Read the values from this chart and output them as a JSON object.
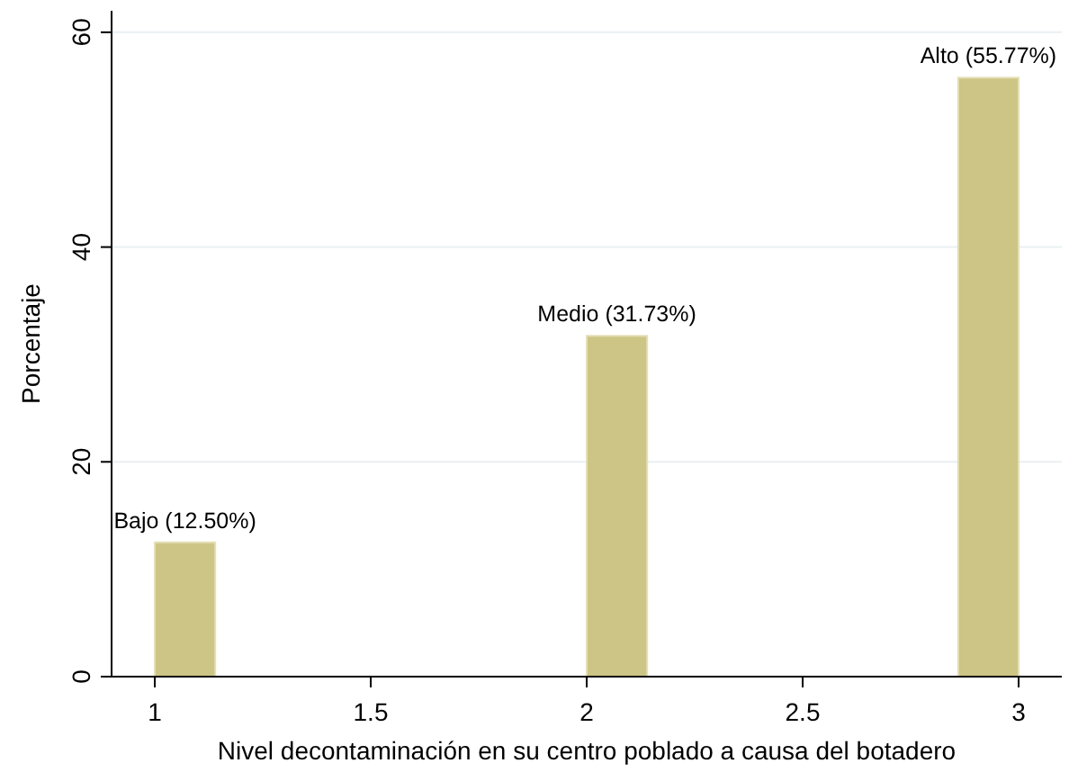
{
  "chart_data": {
    "type": "histogram",
    "xlabel": "Nivel decontaminación en su centro poblado a causa del botadero",
    "ylabel": "Porcentaje",
    "bins": [
      1,
      1.14,
      2,
      2.14,
      2.86,
      3
    ],
    "values": [
      12.5,
      0,
      31.73,
      0,
      55.77
    ],
    "value_labels": [
      "Bajo (12.50%)",
      null,
      "Medio (31.73%)",
      null,
      "Alto (55.77%)"
    ],
    "color": "#cdc585",
    "xlim": [
      0.9,
      3.1
    ],
    "xticks": [
      1,
      1.5,
      2,
      2.5,
      3
    ],
    "ylim": [
      0,
      62
    ],
    "yticks": [
      0,
      20,
      40,
      60
    ],
    "grid": "y"
  }
}
